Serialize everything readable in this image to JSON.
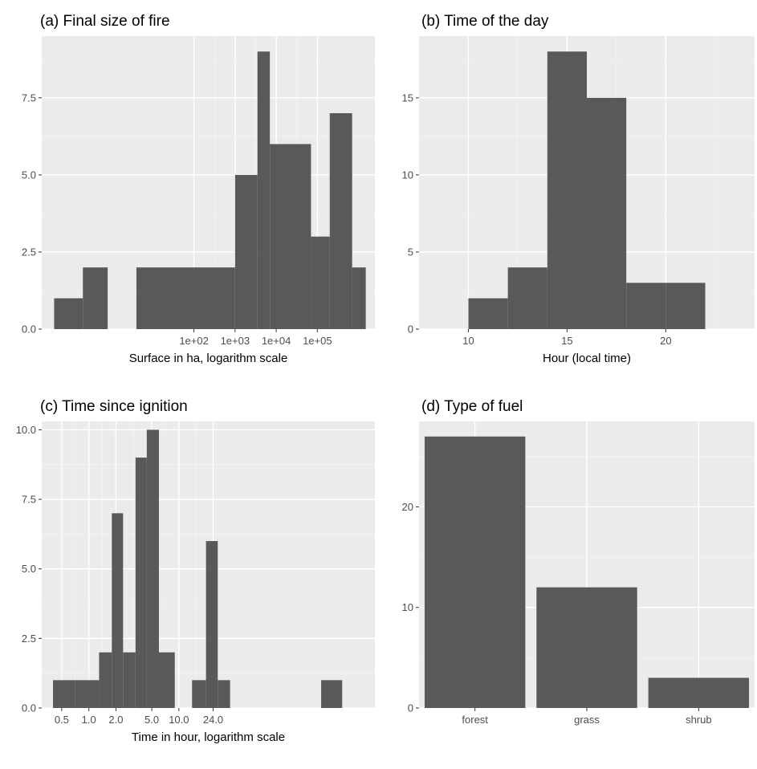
{
  "chart_data": [
    {
      "type": "bar",
      "title": "(a) Final size of fire",
      "xlabel": "Surface in ha, logarithm scale",
      "ylabel": "",
      "x_scale": "log10",
      "xlim": [
        0.02,
        2500000
      ],
      "ylim": [
        0,
        9.5
      ],
      "x_ticks": [
        100,
        1000,
        10000,
        100000
      ],
      "x_tick_labels": [
        "1e+02",
        "1e+03",
        "1e+04",
        "1e+05"
      ],
      "y_ticks": [
        0,
        2.5,
        5,
        7.5
      ],
      "y_tick_labels": [
        "0.0",
        "2.5",
        "5.0",
        "7.5"
      ],
      "bins": [
        {
          "x0": 0.04,
          "x1": 0.2,
          "count": 1
        },
        {
          "x0": 0.2,
          "x1": 0.8,
          "count": 2
        },
        {
          "x0": 4,
          "x1": 200,
          "count": 2
        },
        {
          "x0": 200,
          "x1": 1000,
          "count": 2
        },
        {
          "x0": 1000,
          "x1": 3500,
          "count": 5
        },
        {
          "x0": 3500,
          "x1": 7000,
          "count": 9
        },
        {
          "x0": 7000,
          "x1": 70000,
          "count": 6
        },
        {
          "x0": 70000,
          "x1": 200000,
          "count": 3
        },
        {
          "x0": 200000,
          "x1": 700000,
          "count": 7
        },
        {
          "x0": 700000,
          "x1": 1500000,
          "count": 2
        }
      ]
    },
    {
      "type": "bar",
      "title": "(b) Time of the day",
      "xlabel": "Hour (local time)",
      "ylabel": "",
      "x_scale": "linear",
      "xlim": [
        7.5,
        24.5
      ],
      "ylim": [
        0,
        19
      ],
      "x_ticks": [
        10,
        15,
        20
      ],
      "x_tick_labels": [
        "10",
        "15",
        "20"
      ],
      "y_ticks": [
        0,
        5,
        10,
        15
      ],
      "y_tick_labels": [
        "0",
        "5",
        "10",
        "15"
      ],
      "bins": [
        {
          "x0": 10,
          "x1": 12,
          "count": 2
        },
        {
          "x0": 12,
          "x1": 14,
          "count": 4
        },
        {
          "x0": 14,
          "x1": 16,
          "count": 18
        },
        {
          "x0": 16,
          "x1": 18,
          "count": 15
        },
        {
          "x0": 18,
          "x1": 20,
          "count": 3
        },
        {
          "x0": 20,
          "x1": 22,
          "count": 3
        }
      ]
    },
    {
      "type": "bar",
      "title": "(c) Time since ignition",
      "xlabel": "Time in hour, logarithm scale",
      "ylabel": "",
      "x_scale": "log10",
      "xlim": [
        0.3,
        1500
      ],
      "ylim": [
        0,
        10.3
      ],
      "x_ticks": [
        0.5,
        1,
        2,
        5,
        10,
        24
      ],
      "x_tick_labels": [
        "0.5",
        "1.0",
        "2.0",
        "5.0",
        "10.0",
        "24.0"
      ],
      "y_ticks": [
        0,
        2.5,
        5,
        7.5,
        10
      ],
      "y_tick_labels": [
        "0.0",
        "2.5",
        "5.0",
        "7.5",
        "10.0"
      ],
      "bins": [
        {
          "x0": 0.4,
          "x1": 0.7,
          "count": 1
        },
        {
          "x0": 0.7,
          "x1": 1.3,
          "count": 1
        },
        {
          "x0": 1.3,
          "x1": 1.8,
          "count": 2
        },
        {
          "x0": 1.8,
          "x1": 2.4,
          "count": 7
        },
        {
          "x0": 2.4,
          "x1": 3.3,
          "count": 2
        },
        {
          "x0": 3.3,
          "x1": 4.4,
          "count": 9
        },
        {
          "x0": 4.4,
          "x1": 6,
          "count": 10
        },
        {
          "x0": 6,
          "x1": 9,
          "count": 2
        },
        {
          "x0": 14,
          "x1": 20,
          "count": 1
        },
        {
          "x0": 20,
          "x1": 27,
          "count": 6
        },
        {
          "x0": 27,
          "x1": 37,
          "count": 1
        },
        {
          "x0": 380,
          "x1": 650,
          "count": 1
        }
      ]
    },
    {
      "type": "bar",
      "title": "(d) Type of fuel",
      "xlabel": "",
      "ylabel": "",
      "categories": [
        "forest",
        "grass",
        "shrub"
      ],
      "values": [
        27,
        12,
        3
      ],
      "ylim": [
        0,
        28.5
      ],
      "y_ticks": [
        0,
        10,
        20
      ],
      "y_tick_labels": [
        "0",
        "10",
        "20"
      ]
    }
  ]
}
